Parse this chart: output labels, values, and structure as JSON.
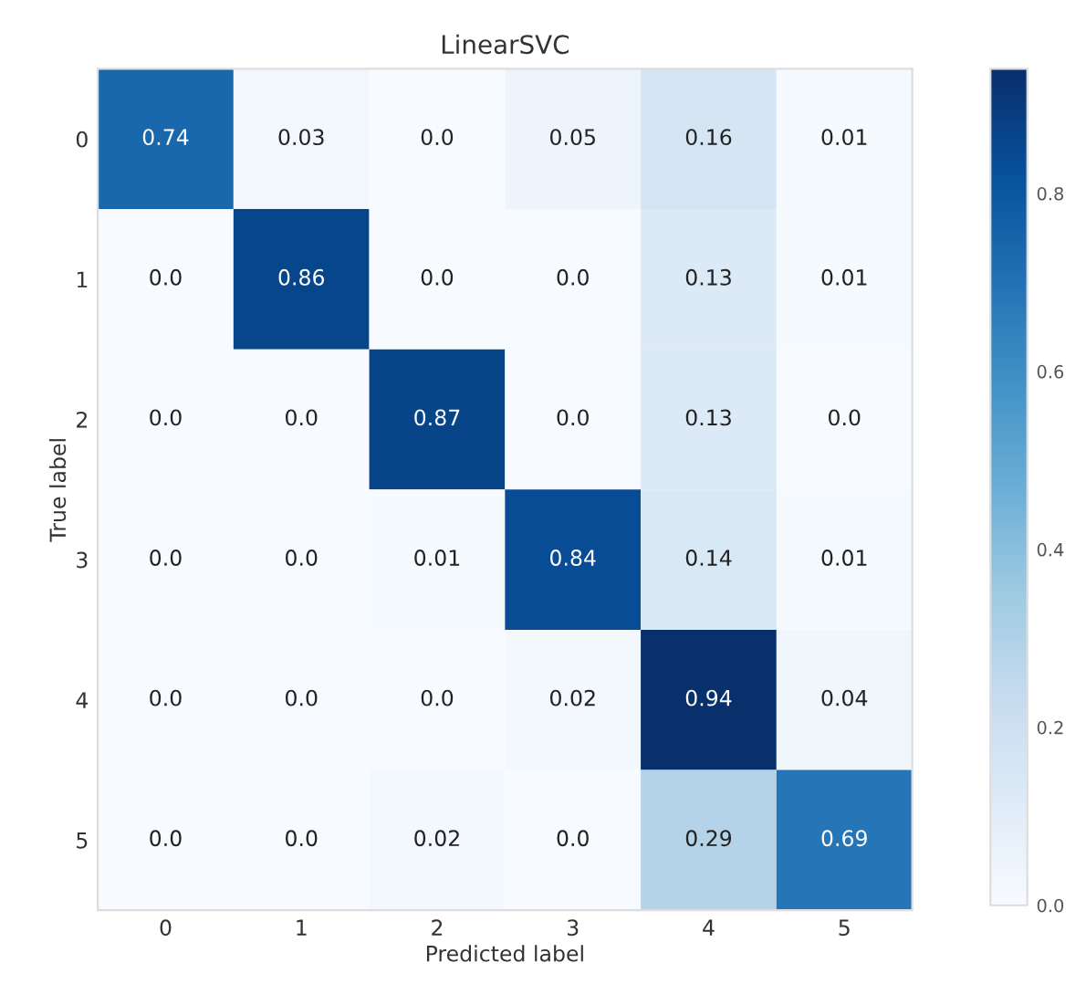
{
  "chart_data": {
    "type": "heatmap",
    "title": "LinearSVC",
    "xlabel": "Predicted label",
    "ylabel": "True label",
    "categories": [
      "0",
      "1",
      "2",
      "3",
      "4",
      "5"
    ],
    "y_categories": [
      "0",
      "1",
      "2",
      "3",
      "4",
      "5"
    ],
    "cells": [
      [
        0.74,
        0.03,
        0.0,
        0.05,
        0.16,
        0.01
      ],
      [
        0.0,
        0.86,
        0.0,
        0.0,
        0.13,
        0.01
      ],
      [
        0.0,
        0.0,
        0.87,
        0.0,
        0.13,
        0.0
      ],
      [
        0.0,
        0.0,
        0.01,
        0.84,
        0.14,
        0.01
      ],
      [
        0.0,
        0.0,
        0.0,
        0.02,
        0.94,
        0.04
      ],
      [
        0.0,
        0.0,
        0.02,
        0.0,
        0.29,
        0.69
      ]
    ],
    "cell_labels": [
      [
        "0.74",
        "0.03",
        "0.0",
        "0.05",
        "0.16",
        "0.01"
      ],
      [
        "0.0",
        "0.86",
        "0.0",
        "0.0",
        "0.13",
        "0.01"
      ],
      [
        "0.0",
        "0.0",
        "0.87",
        "0.0",
        "0.13",
        "0.0"
      ],
      [
        "0.0",
        "0.0",
        "0.01",
        "0.84",
        "0.14",
        "0.01"
      ],
      [
        "0.0",
        "0.0",
        "0.0",
        "0.02",
        "0.94",
        "0.04"
      ],
      [
        "0.0",
        "0.0",
        "0.02",
        "0.0",
        "0.29",
        "0.69"
      ]
    ],
    "clim": [
      0,
      0.94
    ],
    "cticks": [
      {
        "value": 0,
        "label": "0.0"
      },
      {
        "value": 0.2,
        "label": "0.2"
      },
      {
        "value": 0.4,
        "label": "0.4"
      },
      {
        "value": 0.6,
        "label": "0.6"
      },
      {
        "value": 0.8,
        "label": "0.8"
      }
    ],
    "grid": false
  }
}
